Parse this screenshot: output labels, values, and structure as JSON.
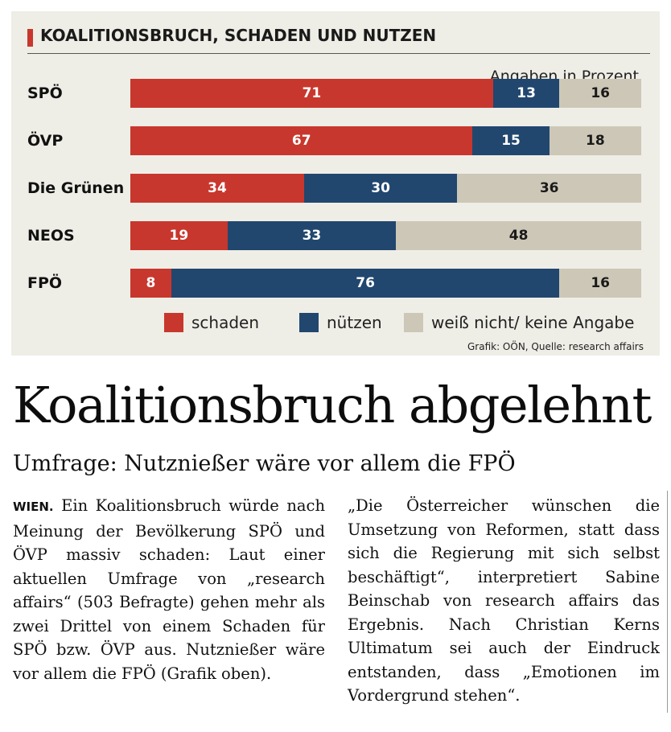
{
  "chart_data": {
    "type": "bar",
    "stacked": true,
    "orientation": "horizontal",
    "title": "KOALITIONSBRUCH, SCHADEN UND NUTZEN",
    "unit_label": "Angaben in Prozent",
    "categories": [
      "SPÖ",
      "ÖVP",
      "Die Grünen",
      "NEOS",
      "FPÖ"
    ],
    "series": [
      {
        "name": "schaden",
        "values": [
          71,
          67,
          34,
          19,
          8
        ],
        "color": "#c8372d"
      },
      {
        "name": "nützen",
        "values": [
          13,
          15,
          30,
          33,
          76
        ],
        "color": "#21476f"
      },
      {
        "name": "weiß nicht/ keine Angabe",
        "values": [
          16,
          18,
          36,
          48,
          16
        ],
        "color": "#cdc7b7"
      }
    ],
    "legend_position": "bottom",
    "source": "Grafik: OÖN,  Quelle: research affairs"
  },
  "article": {
    "headline": "Koalitionsbruch abgelehnt",
    "subheadline": "Umfrage: Nutznießer wäre vor allem die FPÖ",
    "dateline": "WIEN.",
    "col1_text": " Ein Koalitionsbruch würde nach Meinung der Bevölkerung SPÖ und ÖVP massiv schaden: Laut einer aktuellen Umfrage von „research affairs“ (503 Befragte) gehen mehr als zwei Drittel von einem Schaden für SPÖ bzw. ÖVP aus. Nutznießer wäre vor allem die FPÖ (Grafik oben).",
    "col2_text": "„Die Österreicher wünschen die Umsetzung von Reformen, statt dass sich die Regierung mit sich selbst beschäftigt“, interpretiert Sabine Beinschab von research affairs das Ergebnis. Nach Christian Kerns Ultimatum sei auch der Eindruck entstanden, dass „Emotionen im Vordergrund stehen“."
  }
}
